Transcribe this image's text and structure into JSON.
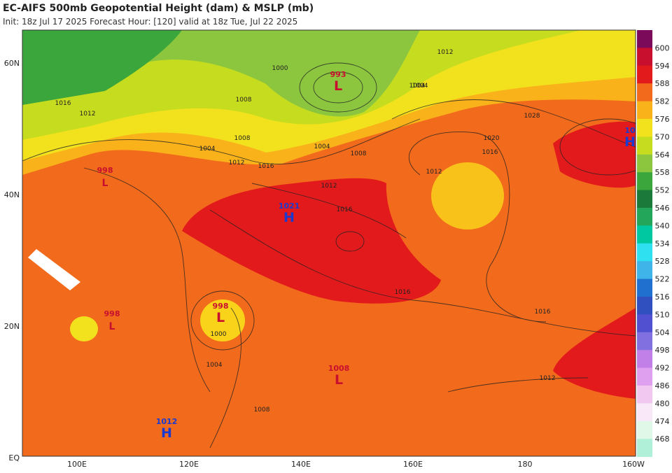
{
  "header": {
    "title": "EC-AIFS 500mb Geopotential Height (dam) & MSLP (mb)",
    "subtitle": "Init: 18z Jul 17 2025   Forecast Hour: [120]   valid at 18z Tue, Jul 22 2025"
  },
  "map": {
    "lat_labels": [
      "60N",
      "40N",
      "20N",
      "EQ"
    ],
    "lon_labels": [
      "100E",
      "120E",
      "140E",
      "160E",
      "180",
      "160W"
    ]
  },
  "colorbar": {
    "labels": [
      "600",
      "594",
      "588",
      "582",
      "576",
      "570",
      "564",
      "558",
      "552",
      "546",
      "540",
      "534",
      "528",
      "522",
      "516",
      "510",
      "504",
      "498",
      "492",
      "486",
      "480",
      "474",
      "468"
    ]
  },
  "centers": [
    {
      "value": "993",
      "letter": "L"
    },
    {
      "value": "1021",
      "letter": "H"
    },
    {
      "value": "998",
      "letter": "L"
    },
    {
      "value": "1008",
      "letter": "L"
    },
    {
      "value": "1012",
      "letter": "H"
    },
    {
      "value": "998",
      "letter": "L"
    },
    {
      "value": "998",
      "letter": "L"
    },
    {
      "value": "10",
      "letter": "H"
    }
  ],
  "contour_labels": [
    "1000",
    "1004",
    "1008",
    "1012",
    "1016",
    "1020",
    "1016",
    "1012",
    "1028",
    "1016",
    "1012",
    "1004",
    "1008",
    "1004",
    "1012",
    "1016",
    "1016",
    "1012",
    "1004",
    "1008",
    "1000",
    "1004",
    "1008",
    "1012",
    "1016"
  ]
}
